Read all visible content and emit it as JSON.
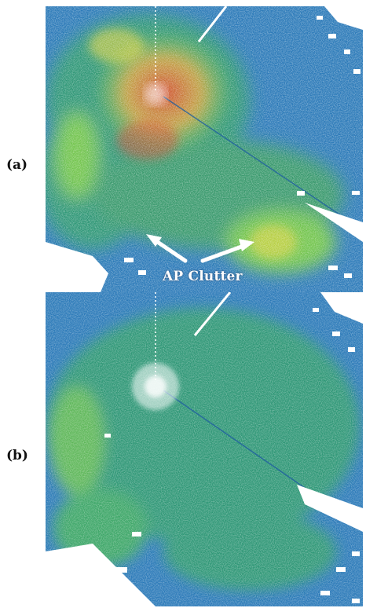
{
  "panels": [
    {
      "label": "(a)"
    },
    {
      "label": "(b)"
    }
  ],
  "annotation": {
    "text": "AP Clutter"
  },
  "colors": {
    "background_blue": "#2a79b8",
    "field_green": "#2f9c6a",
    "bright_green": "#7fd33a",
    "yellow": "#e6d63a",
    "red": "#d9412a",
    "white": "#ffffff"
  }
}
